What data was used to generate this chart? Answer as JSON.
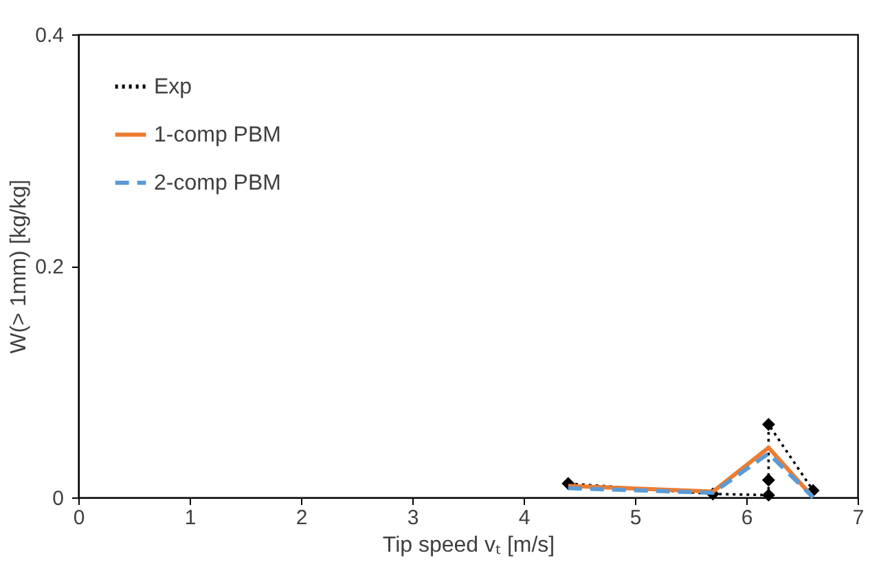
{
  "chart_data": {
    "type": "line",
    "xlabel": "Tip speed vₜ [m/s]",
    "ylabel": "W(> 1mm) [kg/kg]",
    "xlim": [
      0,
      7
    ],
    "xticks": [
      0,
      1,
      2,
      3,
      4,
      5,
      6,
      7
    ],
    "ylim": [
      0,
      0.4
    ],
    "yticks": [
      0,
      0.2,
      0.4
    ],
    "grid": false,
    "legend": "top left",
    "series": [
      {
        "name": "Exp",
        "color": "#000000",
        "marker": "diamond",
        "line_style": "dotted",
        "x": [
          4.4,
          5.7,
          6.2,
          6.2,
          6.2,
          6.6
        ],
        "values": [
          0.012,
          0.003,
          0.002,
          0.015,
          0.063,
          0.006
        ]
      },
      {
        "name": "1-comp PBM",
        "color": "#ed7d31",
        "marker": "none",
        "line_style": "solid",
        "x": [
          4.4,
          5.7,
          6.2,
          6.6
        ],
        "values": [
          0.01,
          0.005,
          0.043,
          0.0
        ]
      },
      {
        "name": "2-comp PBM",
        "color": "#5b9bd5",
        "marker": "none",
        "line_style": "dashed",
        "x": [
          4.4,
          5.7,
          6.2,
          6.6
        ],
        "values": [
          0.008,
          0.004,
          0.038,
          0.0
        ]
      }
    ]
  }
}
